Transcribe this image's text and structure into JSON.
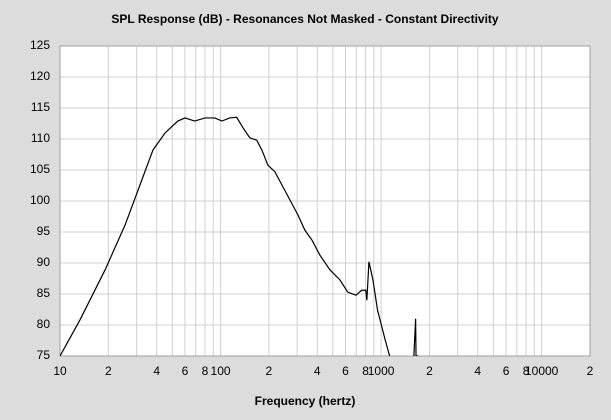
{
  "chart_data": {
    "type": "line",
    "title": "SPL Response (dB) - Resonances Not Masked - Constant Directivity",
    "x_label": "Frequency (hertz)",
    "log_x": true,
    "grid": true,
    "xlim": [
      10,
      20000
    ],
    "ylim": [
      75,
      125
    ],
    "xticks": [
      10,
      {
        "value": 20,
        "label": "2"
      },
      {
        "value": 40,
        "label": "4"
      },
      {
        "value": 60,
        "label": "6"
      },
      {
        "value": 80,
        "label": "8"
      },
      100,
      {
        "value": 200,
        "label": "2"
      },
      {
        "value": 400,
        "label": "4"
      },
      {
        "value": 600,
        "label": "6"
      },
      {
        "value": 800,
        "label": "8"
      },
      1000,
      {
        "value": 2000,
        "label": "2"
      },
      {
        "value": 4000,
        "label": "4"
      },
      {
        "value": 6000,
        "label": "6"
      },
      {
        "value": 8000,
        "label": "8"
      },
      10000,
      {
        "value": 20000,
        "label": "2"
      }
    ],
    "x_minor_ticks": [
      30,
      50,
      70,
      90,
      300,
      500,
      700,
      900,
      3000,
      5000,
      7000,
      9000
    ],
    "yticks": [
      75,
      80,
      85,
      90,
      95,
      100,
      105,
      110,
      115,
      120,
      125
    ],
    "x": [
      10,
      13.3,
      19.1,
      25.4,
      31.5,
      37.9,
      45.2,
      54.2,
      60,
      69,
      80,
      92,
      102,
      114,
      126,
      138,
      152,
      168,
      181,
      197,
      218,
      241,
      270,
      304,
      335,
      371,
      415,
      480,
      553,
      620,
      697,
      757,
      803,
      815,
      840,
      889,
      950,
      1060,
      1130,
      1400,
      1600,
      1640,
      1650,
      1700
    ],
    "series": [
      {
        "name": "SPL",
        "color": "#000000",
        "values": [
          75,
          80.8,
          88.9,
          96.1,
          102.6,
          108.2,
          111,
          112.9,
          113.4,
          112.9,
          113.4,
          113.4,
          112.9,
          113.4,
          113.5,
          111.8,
          110.2,
          109.8,
          108.2,
          105.8,
          104.7,
          102.6,
          100.2,
          97.7,
          95.3,
          93.7,
          91.3,
          88.9,
          87.3,
          85.3,
          84.8,
          85.6,
          85.6,
          84,
          90.2,
          87.3,
          82.4,
          77.6,
          75,
          null,
          75,
          81,
          75,
          75
        ]
      }
    ]
  }
}
